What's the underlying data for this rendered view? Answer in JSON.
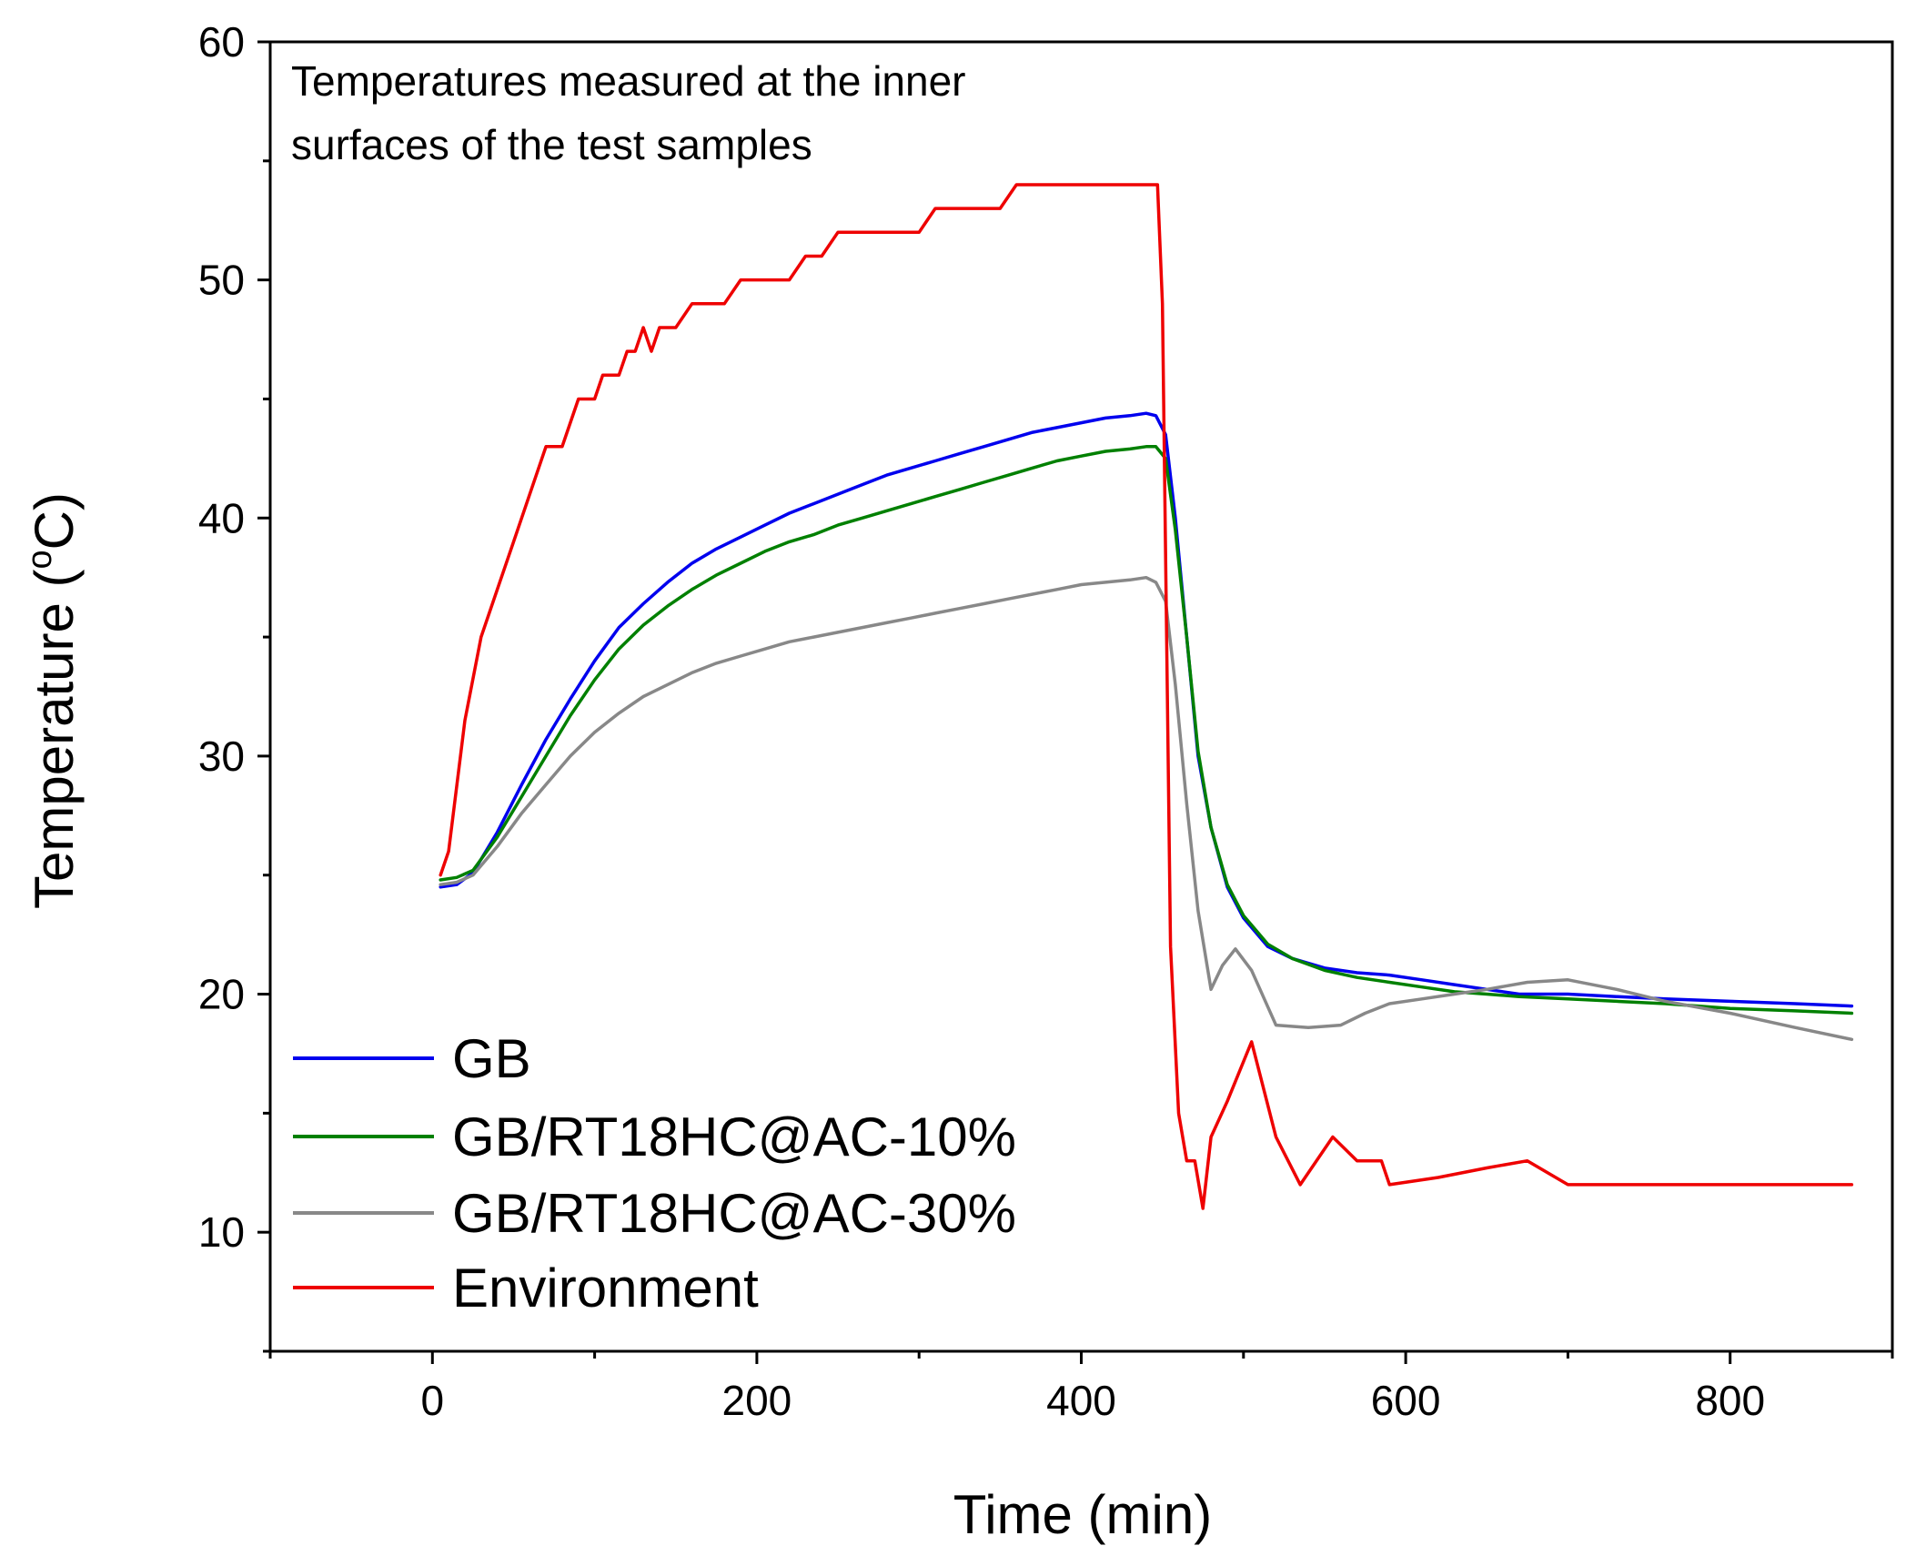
{
  "chart_data": {
    "type": "line",
    "title": "",
    "annotation": [
      "Temperatures measured at the inner",
      "surfaces of the test samples"
    ],
    "xlabel": "Time (min)",
    "ylabel_main": "Temperature (",
    "ylabel_sup": "o",
    "ylabel_end": "C)",
    "xlim": [
      -100,
      900
    ],
    "ylim": [
      5,
      60
    ],
    "xticks": [
      0,
      200,
      400,
      600,
      800
    ],
    "xtick_labels": [
      "0",
      "200",
      "400",
      "600",
      "800"
    ],
    "yticks": [
      10,
      20,
      30,
      40,
      50,
      60
    ],
    "ytick_labels": [
      "10",
      "20",
      "30",
      "40",
      "50",
      "60"
    ],
    "legend_position": "bottom-left",
    "series": [
      {
        "name": "GB",
        "color": "#0000ee",
        "x": [
          5,
          15,
          25,
          40,
          55,
          70,
          85,
          100,
          115,
          130,
          145,
          160,
          175,
          190,
          205,
          220,
          235,
          250,
          265,
          280,
          295,
          310,
          325,
          340,
          355,
          370,
          385,
          400,
          415,
          430,
          440,
          446,
          452,
          458,
          465,
          472,
          480,
          490,
          500,
          515,
          530,
          550,
          570,
          590,
          610,
          630,
          650,
          670,
          700,
          730,
          760,
          800,
          840,
          875
        ],
        "values": [
          24.5,
          24.6,
          25.1,
          26.8,
          28.8,
          30.7,
          32.4,
          34.0,
          35.4,
          36.4,
          37.3,
          38.1,
          38.7,
          39.2,
          39.7,
          40.2,
          40.6,
          41.0,
          41.4,
          41.8,
          42.1,
          42.4,
          42.7,
          43.0,
          43.3,
          43.6,
          43.8,
          44.0,
          44.2,
          44.3,
          44.4,
          44.3,
          43.5,
          40.0,
          35.0,
          30.0,
          27.0,
          24.5,
          23.2,
          22.0,
          21.5,
          21.1,
          20.9,
          20.8,
          20.6,
          20.4,
          20.2,
          20.0,
          20.0,
          19.9,
          19.8,
          19.7,
          19.6,
          19.5
        ]
      },
      {
        "name": "GB/RT18HC@AC-10%",
        "color": "#008000",
        "x": [
          5,
          15,
          25,
          40,
          55,
          70,
          85,
          100,
          115,
          130,
          145,
          160,
          175,
          190,
          205,
          220,
          235,
          250,
          265,
          280,
          295,
          310,
          325,
          340,
          355,
          370,
          385,
          400,
          415,
          430,
          440,
          446,
          452,
          458,
          465,
          472,
          480,
          490,
          500,
          515,
          530,
          550,
          570,
          590,
          610,
          630,
          650,
          670,
          700,
          730,
          760,
          800,
          840,
          875
        ],
        "values": [
          24.8,
          24.9,
          25.2,
          26.6,
          28.3,
          30.0,
          31.7,
          33.2,
          34.5,
          35.5,
          36.3,
          37.0,
          37.6,
          38.1,
          38.6,
          39.0,
          39.3,
          39.7,
          40.0,
          40.3,
          40.6,
          40.9,
          41.2,
          41.5,
          41.8,
          42.1,
          42.4,
          42.6,
          42.8,
          42.9,
          43.0,
          43.0,
          42.5,
          39.5,
          35.0,
          30.2,
          27.0,
          24.6,
          23.3,
          22.1,
          21.5,
          21.0,
          20.7,
          20.5,
          20.3,
          20.1,
          20.0,
          19.9,
          19.8,
          19.7,
          19.6,
          19.4,
          19.3,
          19.2
        ]
      },
      {
        "name": "GB/RT18HC@AC-30%",
        "color": "#888888",
        "x": [
          5,
          15,
          25,
          40,
          55,
          70,
          85,
          100,
          115,
          130,
          145,
          160,
          175,
          190,
          205,
          220,
          235,
          250,
          265,
          280,
          295,
          310,
          325,
          340,
          355,
          370,
          385,
          400,
          415,
          430,
          440,
          446,
          452,
          458,
          465,
          472,
          480,
          487,
          495,
          505,
          520,
          540,
          560,
          575,
          590,
          610,
          630,
          650,
          675,
          700,
          730,
          760,
          800,
          840,
          875
        ],
        "values": [
          24.6,
          24.7,
          25.0,
          26.2,
          27.6,
          28.8,
          30.0,
          31.0,
          31.8,
          32.5,
          33.0,
          33.5,
          33.9,
          34.2,
          34.5,
          34.8,
          35.0,
          35.2,
          35.4,
          35.6,
          35.8,
          36.0,
          36.2,
          36.4,
          36.6,
          36.8,
          37.0,
          37.2,
          37.3,
          37.4,
          37.5,
          37.3,
          36.5,
          33.0,
          28.0,
          23.5,
          20.2,
          21.2,
          21.9,
          21.0,
          18.7,
          18.6,
          18.7,
          19.2,
          19.6,
          19.8,
          20.0,
          20.2,
          20.5,
          20.6,
          20.2,
          19.7,
          19.2,
          18.6,
          18.1
        ]
      },
      {
        "name": "Environment",
        "color": "#ee0000",
        "x": [
          5,
          10,
          20,
          30,
          40,
          50,
          60,
          70,
          80,
          90,
          100,
          105,
          115,
          120,
          125,
          130,
          135,
          140,
          150,
          160,
          170,
          180,
          190,
          200,
          210,
          220,
          230,
          240,
          250,
          260,
          270,
          280,
          290,
          300,
          310,
          320,
          330,
          340,
          350,
          360,
          370,
          380,
          400,
          420,
          440,
          447,
          450,
          455,
          460,
          465,
          470,
          475,
          480,
          490,
          505,
          520,
          535,
          555,
          570,
          585,
          590,
          620,
          650,
          675,
          700,
          750,
          800,
          875
        ],
        "values": [
          25.0,
          26.0,
          31.5,
          35.0,
          37.0,
          39.0,
          41.0,
          43.0,
          43.0,
          45.0,
          45.0,
          46.0,
          46.0,
          47.0,
          47.0,
          48.0,
          47.0,
          48.0,
          48.0,
          49.0,
          49.0,
          49.0,
          50.0,
          50.0,
          50.0,
          50.0,
          51.0,
          51.0,
          52.0,
          52.0,
          52.0,
          52.0,
          52.0,
          52.0,
          53.0,
          53.0,
          53.0,
          53.0,
          53.0,
          54.0,
          54.0,
          54.0,
          54.0,
          54.0,
          54.0,
          54.0,
          49.0,
          22.0,
          15.0,
          13.0,
          13.0,
          11.0,
          14.0,
          15.5,
          18.0,
          14.0,
          12.0,
          14.0,
          13.0,
          13.0,
          12.0,
          12.3,
          12.7,
          13.0,
          12.0,
          12.0,
          12.0,
          12.0
        ]
      }
    ]
  }
}
